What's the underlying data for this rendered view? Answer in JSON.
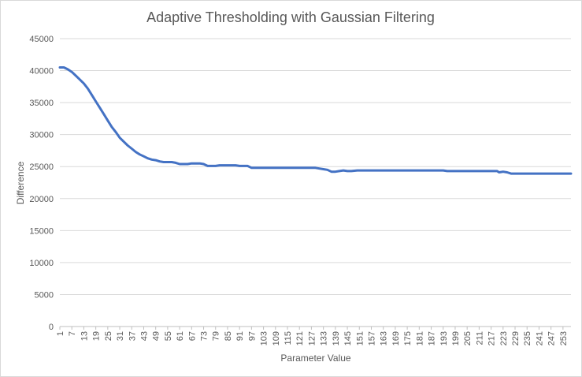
{
  "chart_data": {
    "type": "line",
    "title": "Adaptive Thresholding with Gaussian Filtering",
    "xlabel": "Parameter Value",
    "ylabel": "Difference",
    "ylim": [
      0,
      45000
    ],
    "y_ticks": [
      0,
      5000,
      10000,
      15000,
      20000,
      25000,
      30000,
      35000,
      40000,
      45000
    ],
    "x_ticks": [
      1,
      7,
      13,
      19,
      25,
      31,
      37,
      43,
      49,
      55,
      61,
      67,
      73,
      79,
      85,
      91,
      97,
      103,
      109,
      115,
      121,
      127,
      133,
      139,
      145,
      151,
      157,
      163,
      169,
      175,
      181,
      187,
      193,
      199,
      205,
      211,
      217,
      223,
      229,
      235,
      241,
      247,
      253
    ],
    "xlim": [
      1,
      257
    ],
    "grid": "horizontal",
    "line_color": "#4472c4",
    "series": [
      {
        "x": [
          1,
          3,
          5,
          7,
          9,
          11,
          13,
          15,
          17,
          19,
          21,
          23,
          25,
          27,
          29,
          31,
          33,
          35,
          37,
          39,
          41,
          43,
          45,
          47,
          49,
          51,
          53,
          55,
          57,
          59,
          61,
          63,
          65,
          67,
          69,
          71,
          73,
          75,
          77,
          79,
          81,
          83,
          85,
          89,
          91,
          93,
          95,
          97,
          99,
          101,
          105,
          110,
          115,
          120,
          125,
          129,
          131,
          133,
          135,
          137,
          139,
          141,
          143,
          145,
          147,
          150,
          160,
          170,
          180,
          190,
          193,
          195,
          200,
          210,
          220,
          221,
          223,
          225,
          227,
          230,
          240,
          250,
          257
        ],
        "y": [
          40500,
          40500,
          40200,
          39800,
          39200,
          38600,
          38000,
          37200,
          36200,
          35200,
          34200,
          33200,
          32200,
          31200,
          30400,
          29500,
          28900,
          28300,
          27800,
          27300,
          26900,
          26600,
          26300,
          26100,
          26000,
          25800,
          25700,
          25700,
          25700,
          25600,
          25400,
          25400,
          25400,
          25500,
          25500,
          25500,
          25400,
          25100,
          25100,
          25100,
          25200,
          25200,
          25200,
          25200,
          25100,
          25100,
          25100,
          24800,
          24800,
          24800,
          24800,
          24800,
          24800,
          24800,
          24800,
          24800,
          24700,
          24600,
          24500,
          24200,
          24200,
          24300,
          24400,
          24300,
          24300,
          24400,
          24400,
          24400,
          24400,
          24400,
          24400,
          24300,
          24300,
          24300,
          24300,
          24100,
          24200,
          24100,
          23900,
          23900,
          23900,
          23900,
          23900
        ]
      }
    ]
  }
}
